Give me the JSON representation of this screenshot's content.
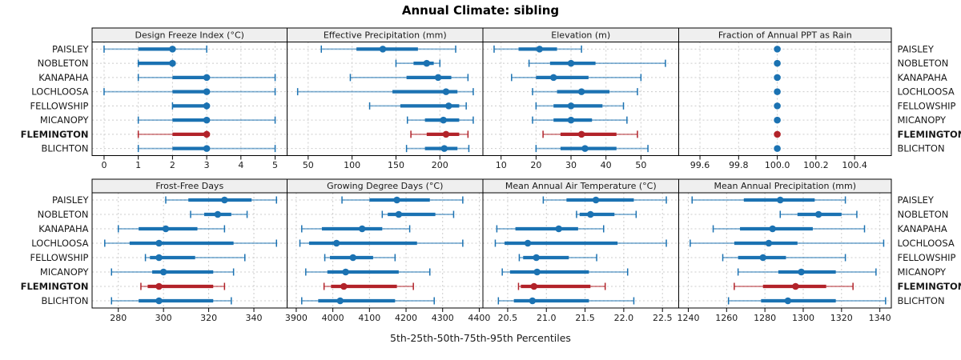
{
  "title": "Annual Climate: sibling",
  "caption": "5th-25th-50th-75th-95th Percentiles",
  "colors": {
    "normal": "#1b72b2",
    "highlight": "#b2232a",
    "panel_header_bg": "#efefef",
    "grid": "#cccccc",
    "border": "#000000",
    "text": "#1a1a1a"
  },
  "chart_data": {
    "type": "dot-whisker percentile trellis (segplot)",
    "percentile_levels": [
      5,
      25,
      50,
      75,
      95
    ],
    "rows": [
      "PAISLEY",
      "NOBLETON",
      "KANAPAHA",
      "LOCHLOOSA",
      "FELLOWSHIP",
      "MICANOPY",
      "FLEMINGTON",
      "BLICHTON"
    ],
    "highlight_row": "FLEMINGTON",
    "legend_position": "none",
    "grid": "dashed",
    "panels": [
      {
        "title": "Design Freeze Index (°C)",
        "row": 0,
        "col": 0,
        "xlim": [
          -0.35,
          5.35
        ],
        "ticks": [
          0,
          1,
          2,
          3,
          4,
          5
        ],
        "tick_labels": [
          "0",
          "1",
          "2",
          "3",
          "4",
          "5"
        ],
        "values": [
          [
            0,
            1,
            2,
            2,
            3
          ],
          [
            1,
            1,
            2,
            2,
            2
          ],
          [
            1,
            2,
            3,
            3,
            5
          ],
          [
            0,
            2,
            3,
            3,
            5
          ],
          [
            2,
            2,
            3,
            3,
            3
          ],
          [
            1,
            2,
            3,
            3,
            5
          ],
          [
            1,
            2,
            3,
            3,
            3
          ],
          [
            1,
            2,
            3,
            3,
            5
          ]
        ]
      },
      {
        "title": "Effective Precipitation (mm)",
        "row": 0,
        "col": 1,
        "xlim": [
          26,
          249
        ],
        "ticks": [
          50,
          100,
          150,
          200
        ],
        "tick_labels": [
          "50",
          "100",
          "150",
          "200"
        ],
        "values": [
          [
            65,
            105,
            135,
            175,
            218
          ],
          [
            150,
            170,
            185,
            193,
            200
          ],
          [
            98,
            162,
            198,
            213,
            232
          ],
          [
            38,
            146,
            207,
            220,
            238
          ],
          [
            120,
            155,
            210,
            222,
            230
          ],
          [
            163,
            183,
            204,
            222,
            238
          ],
          [
            167,
            185,
            207,
            222,
            232
          ],
          [
            162,
            183,
            205,
            220,
            233
          ]
        ]
      },
      {
        "title": "Elevation (m)",
        "row": 0,
        "col": 2,
        "xlim": [
          4.8,
          60.8
        ],
        "ticks": [
          10,
          20,
          30,
          40,
          50
        ],
        "tick_labels": [
          "10",
          "20",
          "30",
          "40",
          "50"
        ],
        "values": [
          [
            8,
            15,
            21,
            26,
            33
          ],
          [
            18,
            24,
            30,
            37,
            57
          ],
          [
            13,
            20,
            25,
            35,
            50
          ],
          [
            19,
            26,
            33,
            41,
            49
          ],
          [
            20,
            25,
            30,
            39,
            45
          ],
          [
            19,
            25,
            30,
            36,
            46
          ],
          [
            22,
            27,
            33,
            43,
            49
          ],
          [
            20,
            27,
            34,
            43,
            52
          ]
        ]
      },
      {
        "title": "Fraction of Annual PPT as Rain",
        "row": 0,
        "col": 3,
        "xlim": [
          99.49,
          100.59
        ],
        "ticks": [
          99.6,
          99.8,
          100.0,
          100.2,
          100.4
        ],
        "tick_labels": [
          "99.6",
          "99.8",
          "100.0",
          "100.2",
          "100.4"
        ],
        "values": [
          [
            100,
            100,
            100,
            100,
            100
          ],
          [
            100,
            100,
            100,
            100,
            100
          ],
          [
            100,
            100,
            100,
            100,
            100
          ],
          [
            100,
            100,
            100,
            100,
            100
          ],
          [
            100,
            100,
            100,
            100,
            100
          ],
          [
            100,
            100,
            100,
            100,
            100
          ],
          [
            100,
            100,
            100,
            100,
            100
          ],
          [
            100,
            100,
            100,
            100,
            100
          ]
        ]
      },
      {
        "title": "Frost-Free Days",
        "row": 1,
        "col": 0,
        "xlim": [
          268.4,
          354.7
        ],
        "ticks": [
          280,
          300,
          320,
          340
        ],
        "tick_labels": [
          "280",
          "300",
          "320",
          "340"
        ],
        "values": [
          [
            301,
            311,
            327,
            339,
            350
          ],
          [
            312,
            318,
            324,
            330,
            337
          ],
          [
            280,
            289,
            301,
            315,
            327
          ],
          [
            274,
            285,
            298,
            331,
            350
          ],
          [
            292,
            294,
            298,
            314,
            336
          ],
          [
            277,
            295,
            300,
            322,
            331
          ],
          [
            290,
            293,
            298,
            322,
            327
          ],
          [
            277,
            289,
            298,
            322,
            330
          ]
        ]
      },
      {
        "title": "Growing Degree Days (°C)",
        "row": 1,
        "col": 1,
        "xlim": [
          3875,
          4410
        ],
        "ticks": [
          3900,
          4000,
          4100,
          4200,
          4300,
          4400
        ],
        "tick_labels": [
          "3900",
          "4000",
          "4100",
          "4200",
          "4300",
          "4400"
        ],
        "values": [
          [
            4025,
            4100,
            4175,
            4265,
            4355
          ],
          [
            4135,
            4150,
            4180,
            4280,
            4330
          ],
          [
            3915,
            3970,
            4080,
            4135,
            4210
          ],
          [
            3910,
            3935,
            4010,
            4230,
            4355
          ],
          [
            3978,
            3992,
            4055,
            4110,
            4170
          ],
          [
            3926,
            3985,
            4035,
            4180,
            4265
          ],
          [
            3976,
            3995,
            4030,
            4175,
            4220
          ],
          [
            3915,
            3960,
            4020,
            4170,
            4277
          ]
        ]
      },
      {
        "title": "Mean Annual Air Temperature (°C)",
        "row": 1,
        "col": 2,
        "xlim": [
          20.18,
          22.71
        ],
        "ticks": [
          20.5,
          21.0,
          21.5,
          22.0,
          22.5
        ],
        "tick_labels": [
          "20.5",
          "21.0",
          "21.5",
          "22.0",
          "22.5"
        ],
        "values": [
          [
            20.96,
            21.26,
            21.64,
            22.13,
            22.55
          ],
          [
            21.39,
            21.43,
            21.57,
            21.88,
            22.16
          ],
          [
            20.36,
            20.6,
            21.16,
            21.41,
            21.74
          ],
          [
            20.34,
            20.46,
            20.76,
            21.92,
            22.55
          ],
          [
            20.65,
            20.7,
            20.87,
            21.29,
            21.65
          ],
          [
            20.43,
            20.53,
            20.88,
            21.55,
            22.05
          ],
          [
            20.64,
            20.67,
            20.84,
            21.57,
            21.76
          ],
          [
            20.38,
            20.58,
            20.82,
            21.55,
            22.13
          ]
        ]
      },
      {
        "title": "Mean Annual Precipitation (mm)",
        "row": 1,
        "col": 3,
        "xlim": [
          1235,
          1346
        ],
        "ticks": [
          1240,
          1260,
          1280,
          1300,
          1320,
          1340
        ],
        "tick_labels": [
          "1240",
          "1260",
          "1280",
          "1300",
          "1320",
          "1340"
        ],
        "values": [
          [
            1242,
            1269,
            1288,
            1306,
            1322
          ],
          [
            1288,
            1297,
            1308,
            1320,
            1328
          ],
          [
            1253,
            1267,
            1284,
            1305,
            1332
          ],
          [
            1241,
            1264,
            1282,
            1297,
            1342
          ],
          [
            1258,
            1266,
            1279,
            1291,
            1322
          ],
          [
            1266,
            1287,
            1299,
            1317,
            1338
          ],
          [
            1264,
            1279,
            1296,
            1312,
            1326
          ],
          [
            1261,
            1278,
            1292,
            1317,
            1343
          ]
        ]
      }
    ]
  }
}
